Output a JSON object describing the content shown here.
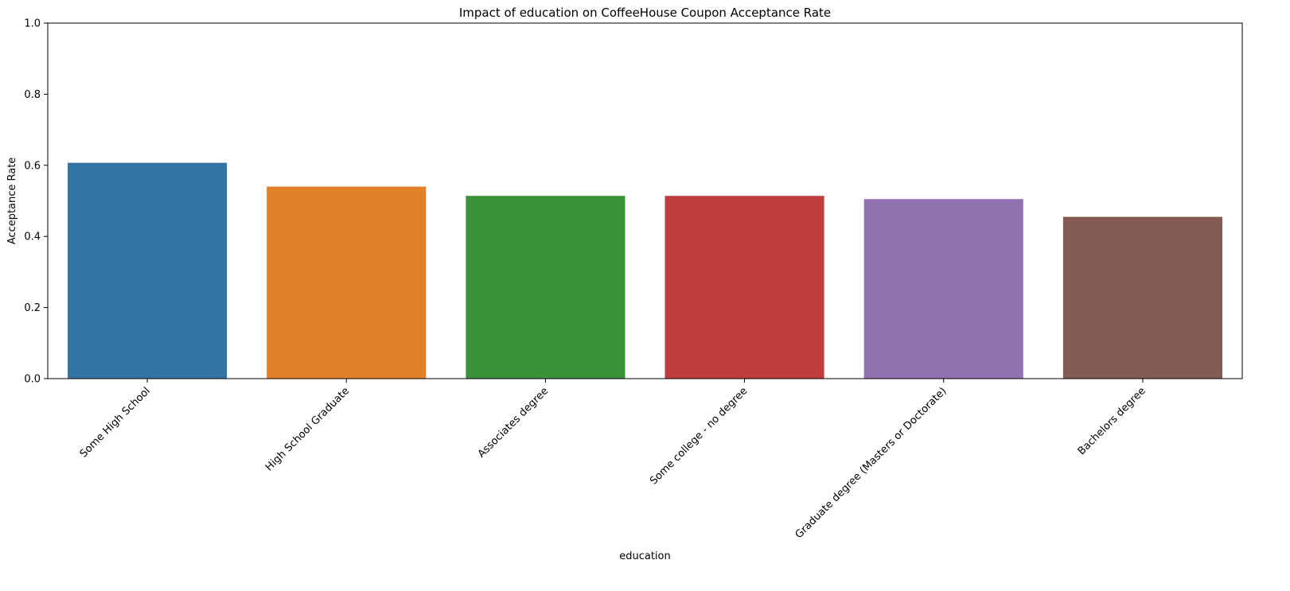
{
  "chart_data": {
    "type": "bar",
    "title": "Impact of education on CoffeeHouse Coupon Acceptance Rate",
    "xlabel": "education",
    "ylabel": "Acceptance Rate",
    "categories": [
      "Some High School",
      "High School Graduate",
      "Associates degree",
      "Some college - no degree",
      "Graduate degree (Masters or Doctorate)",
      "Bachelors degree"
    ],
    "values": [
      0.607,
      0.54,
      0.514,
      0.514,
      0.505,
      0.455
    ],
    "colors": [
      "#3274a1",
      "#e1812c",
      "#3a923a",
      "#c03d3e",
      "#9372b2",
      "#845b53"
    ],
    "ylim": [
      0,
      1
    ],
    "yticks": [
      0.0,
      0.2,
      0.4,
      0.6,
      0.8,
      1.0
    ],
    "ytick_labels": [
      "0.0",
      "0.2",
      "0.4",
      "0.6",
      "0.8",
      "1.0"
    ],
    "xtick_rotation": 45,
    "grid": false,
    "legend": "none"
  }
}
